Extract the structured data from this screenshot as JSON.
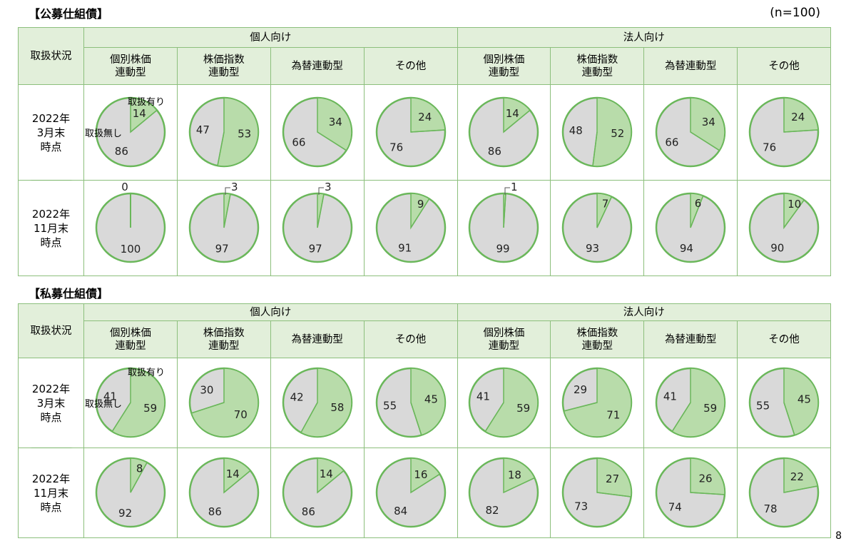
{
  "page_number": "8",
  "colors": {
    "yes": "#b8dcaa",
    "no": "#d9d9d9",
    "stroke": "#6ab75a",
    "header_bg": "#e2efda",
    "border": "#8cbf7c"
  },
  "public": {
    "title": "【公募仕組債】",
    "n_label": "(n=100)",
    "row_header_label": "取扱状況",
    "group_labels": [
      "個人向け",
      "法人向け"
    ],
    "columns": [
      "個別株価\n連動型",
      "株価指数\n連動型",
      "為替連動型",
      "その他",
      "個別株価\n連動型",
      "株価指数\n連動型",
      "為替連動型",
      "その他"
    ],
    "rows": [
      {
        "label": "2022年\n3月末\n時点"
      },
      {
        "label": "2022年\n11月末\n時点"
      }
    ],
    "legend_yes": "取扱有り",
    "legend_no": "取扱無し"
  },
  "private": {
    "title": "【私募仕組債】",
    "row_header_label": "取扱状況",
    "group_labels": [
      "個人向け",
      "法人向け"
    ],
    "columns": [
      "個別株価\n連動型",
      "株価指数\n連動型",
      "為替連動型",
      "その他",
      "個別株価\n連動型",
      "株価指数\n連動型",
      "為替連動型",
      "その他"
    ],
    "rows": [
      {
        "label": "2022年\n3月末\n時点"
      },
      {
        "label": "2022年\n11月末\n時点"
      }
    ],
    "legend_yes": "取扱有り",
    "legend_no": "取扱無し"
  },
  "chart_data": [
    {
      "type": "pie",
      "title": "【公募仕組債】",
      "series_names": [
        "取扱有り",
        "取扱無し"
      ],
      "groups": [
        "個人向け",
        "法人向け"
      ],
      "categories": [
        "個別株価連動型",
        "株価指数連動型",
        "為替連動型",
        "その他",
        "個別株価連動型",
        "株価指数連動型",
        "為替連動型",
        "その他"
      ],
      "rows": [
        "2022年3月末時点",
        "2022年11月末時点"
      ],
      "values_yes": [
        [
          14,
          53,
          34,
          24,
          14,
          52,
          34,
          24
        ],
        [
          0,
          3,
          3,
          9,
          1,
          7,
          6,
          10
        ]
      ],
      "values_no": [
        [
          86,
          47,
          66,
          76,
          86,
          48,
          66,
          76
        ],
        [
          100,
          97,
          97,
          91,
          99,
          93,
          94,
          90
        ]
      ]
    },
    {
      "type": "pie",
      "title": "【私募仕組債】",
      "series_names": [
        "取扱有り",
        "取扱無し"
      ],
      "groups": [
        "個人向け",
        "法人向け"
      ],
      "categories": [
        "個別株価連動型",
        "株価指数連動型",
        "為替連動型",
        "その他",
        "個別株価連動型",
        "株価指数連動型",
        "為替連動型",
        "その他"
      ],
      "rows": [
        "2022年3月末時点",
        "2022年11月末時点"
      ],
      "values_yes": [
        [
          59,
          70,
          58,
          45,
          59,
          71,
          59,
          45
        ],
        [
          8,
          14,
          14,
          16,
          18,
          27,
          26,
          22
        ]
      ],
      "values_no": [
        [
          41,
          30,
          42,
          55,
          41,
          29,
          41,
          55
        ],
        [
          92,
          86,
          86,
          84,
          82,
          73,
          74,
          78
        ]
      ]
    }
  ]
}
